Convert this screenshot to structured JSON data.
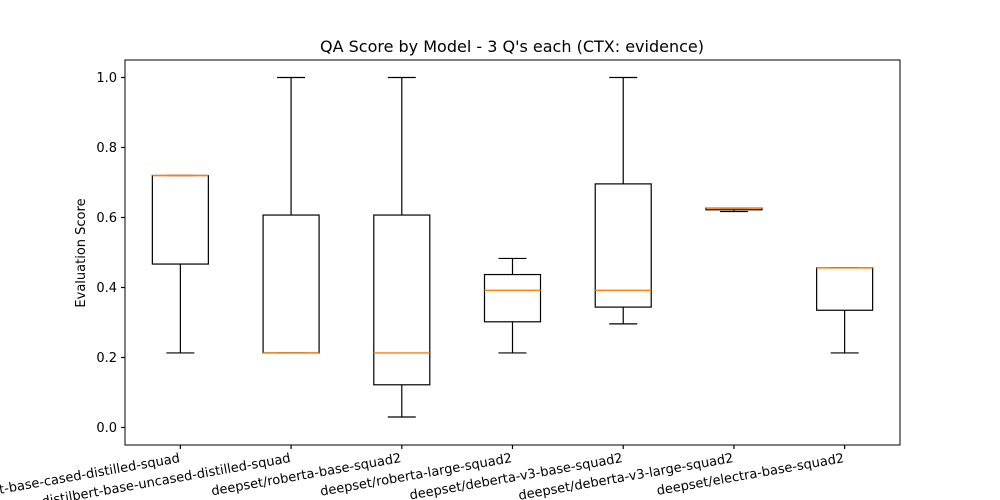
{
  "chart_data": {
    "type": "box",
    "title": "QA Score by Model - 3 Q's each (CTX: evidence)",
    "xlabel": "",
    "ylabel": "Evaluation Score",
    "ylim": [
      -0.05,
      1.05
    ],
    "yticks": [
      0.0,
      0.2,
      0.4,
      0.6,
      0.8,
      1.0
    ],
    "ytick_labels": [
      "0.0",
      "0.2",
      "0.4",
      "0.6",
      "0.8",
      "1.0"
    ],
    "grid": false,
    "colors": {
      "box": "#000000",
      "median": "#ff7f0e"
    },
    "categories": [
      "distilbert-base-cased-distilled-squad",
      "distilbert-base-uncased-distilled-squad",
      "deepset/roberta-base-squad2",
      "deepset/roberta-large-squad2",
      "deepset/deberta-v3-base-squad2",
      "deepset/deberta-v3-large-squad2",
      "deepset/electra-base-squad2"
    ],
    "boxes": [
      {
        "whislo": 0.213,
        "q1": 0.467,
        "med": 0.72,
        "q3": 0.72,
        "whishi": 0.72
      },
      {
        "whislo": 0.213,
        "q1": 0.213,
        "med": 0.213,
        "q3": 0.607,
        "whishi": 1.0
      },
      {
        "whislo": 0.03,
        "q1": 0.122,
        "med": 0.213,
        "q3": 0.607,
        "whishi": 1.0
      },
      {
        "whislo": 0.213,
        "q1": 0.302,
        "med": 0.392,
        "q3": 0.437,
        "whishi": 0.483
      },
      {
        "whislo": 0.296,
        "q1": 0.344,
        "med": 0.392,
        "q3": 0.696,
        "whishi": 1.0
      },
      {
        "whislo": 0.617,
        "q1": 0.622,
        "med": 0.627,
        "q3": 0.627,
        "whishi": 0.627
      },
      {
        "whislo": 0.213,
        "q1": 0.335,
        "med": 0.456,
        "q3": 0.456,
        "whishi": 0.456
      }
    ]
  }
}
